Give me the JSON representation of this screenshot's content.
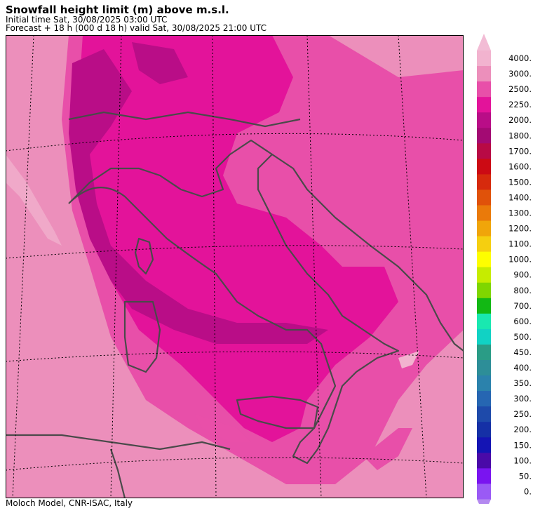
{
  "header": {
    "title": "Snowfall height limit (m) above m.s.l.",
    "initial_time": "Initial time  Sat, 30/08/2025  03:00 UTC",
    "forecast": "Forecast  +  18 h  (000 d 18 h)  valid Sat, 30/08/2025 21:00 UTC"
  },
  "footer": {
    "credit": "Moloch Model, CNR-ISAC, Italy"
  },
  "colorbar": {
    "levels": [
      {
        "label": "4000.",
        "color": "#f2b3cf"
      },
      {
        "label": "3000.",
        "color": "#ec8fbb"
      },
      {
        "label": "2500.",
        "color": "#e84fa9"
      },
      {
        "label": "2250.",
        "color": "#e3139a"
      },
      {
        "label": "2000.",
        "color": "#b90d87"
      },
      {
        "label": "1800.",
        "color": "#a30a73"
      },
      {
        "label": "1700.",
        "color": "#b80a45"
      },
      {
        "label": "1600.",
        "color": "#cc0a14"
      },
      {
        "label": "1500.",
        "color": "#d62a0d"
      },
      {
        "label": "1400.",
        "color": "#e0520a"
      },
      {
        "label": "1300.",
        "color": "#ea7a0a"
      },
      {
        "label": "1200.",
        "color": "#f0a50a"
      },
      {
        "label": "1100.",
        "color": "#f5cf10"
      },
      {
        "label": "1000.",
        "color": "#fefe00"
      },
      {
        "label": "900.",
        "color": "#c6ec00"
      },
      {
        "label": "800.",
        "color": "#7fd600"
      },
      {
        "label": "700.",
        "color": "#12b814"
      },
      {
        "label": "600.",
        "color": "#19e8b0"
      },
      {
        "label": "500.",
        "color": "#11d2c4"
      },
      {
        "label": "450.",
        "color": "#2a9c86"
      },
      {
        "label": "400.",
        "color": "#2d8e98"
      },
      {
        "label": "350.",
        "color": "#2b82ac"
      },
      {
        "label": "300.",
        "color": "#2666b2"
      },
      {
        "label": "250.",
        "color": "#1e4aaa"
      },
      {
        "label": "200.",
        "color": "#1530a6"
      },
      {
        "label": "150.",
        "color": "#1414b4"
      },
      {
        "label": "100.",
        "color": "#4a0aa8"
      },
      {
        "label": "50.",
        "color": "#7a14f0"
      },
      {
        "label": "0.",
        "color": "#9a5af5"
      }
    ],
    "top_arrow_color": "#f2bcd5",
    "bottom_arrow_color": "#b489f0"
  }
}
